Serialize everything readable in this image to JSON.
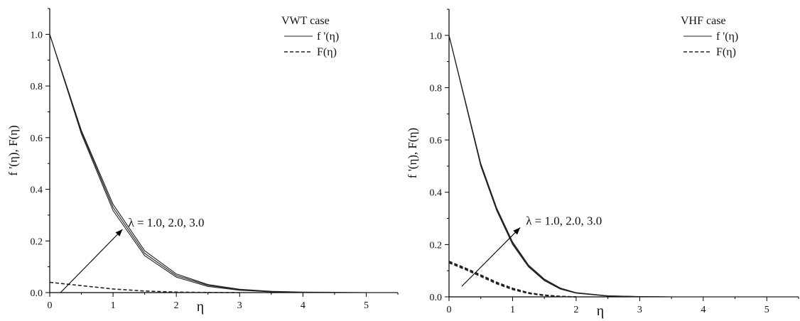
{
  "chart_data": [
    {
      "type": "line",
      "title": "",
      "xlabel": "η",
      "ylabel": "f '(η), F(η)",
      "xlim": [
        0,
        5.5
      ],
      "ylim": [
        0,
        1.1
      ],
      "x_ticks": [
        0,
        1,
        2,
        3,
        4,
        5
      ],
      "y_ticks": [
        0.0,
        0.2,
        0.4,
        0.6,
        0.8,
        1.0
      ],
      "grid": false,
      "legend": {
        "title": "VWT case",
        "placement": "top-right",
        "entries": [
          {
            "label": "f '(η)",
            "style": "solid"
          },
          {
            "label": "F(η)",
            "style": "dashed"
          }
        ]
      },
      "annotation": {
        "text": "λ = 1.0, 2.0, 3.0",
        "arrow_from": [
          0.17,
          0.0
        ],
        "arrow_to": [
          1.15,
          0.245
        ]
      },
      "series": [
        {
          "style": "solid",
          "x": [
            0,
            0.5,
            1.0,
            1.5,
            2.0,
            2.5,
            3.0,
            3.5,
            4.0,
            4.5,
            5.0,
            5.5
          ],
          "values": [
            1.0,
            0.615,
            0.318,
            0.143,
            0.06,
            0.024,
            0.009,
            0.003,
            0.001,
            0.0,
            0.0,
            0.0
          ]
        },
        {
          "style": "solid",
          "x": [
            0,
            0.5,
            1.0,
            1.5,
            2.0,
            2.5,
            3.0,
            3.5,
            4.0,
            4.5,
            5.0,
            5.5
          ],
          "values": [
            1.0,
            0.622,
            0.33,
            0.152,
            0.066,
            0.028,
            0.011,
            0.004,
            0.001,
            0.0,
            0.0,
            0.0
          ]
        },
        {
          "style": "solid",
          "x": [
            0,
            0.5,
            1.0,
            1.5,
            2.0,
            2.5,
            3.0,
            3.5,
            4.0,
            4.5,
            5.0,
            5.5
          ],
          "values": [
            1.0,
            0.628,
            0.342,
            0.162,
            0.072,
            0.031,
            0.013,
            0.005,
            0.002,
            0.001,
            0.0,
            0.0
          ]
        },
        {
          "style": "dashed",
          "x": [
            0,
            0.5,
            1.0,
            1.5,
            2.0,
            2.5,
            3.0
          ],
          "values": [
            0.04,
            0.027,
            0.014,
            0.006,
            0.002,
            0.0005,
            0.0
          ]
        }
      ]
    },
    {
      "type": "line",
      "title": "",
      "xlabel": "η",
      "ylabel": "f '(η), F(η)",
      "xlim": [
        0,
        5.5
      ],
      "ylim": [
        0,
        1.1
      ],
      "x_ticks": [
        0,
        1,
        2,
        3,
        4,
        5
      ],
      "y_ticks": [
        0.0,
        0.2,
        0.4,
        0.6,
        0.8,
        1.0
      ],
      "grid": false,
      "legend": {
        "title": "VHF case",
        "placement": "top-right",
        "entries": [
          {
            "label": "f '(η)",
            "style": "solid"
          },
          {
            "label": "F(η)",
            "style": "dashed"
          }
        ]
      },
      "annotation": {
        "text": "λ = 1.0, 2.0, 3.0",
        "arrow_from": [
          0.2,
          0.04
        ],
        "arrow_to": [
          1.12,
          0.265
        ]
      },
      "series": [
        {
          "style": "solid",
          "x": [
            0,
            0.25,
            0.5,
            0.75,
            1.0,
            1.25,
            1.5,
            1.75,
            2.0,
            2.5,
            3.0,
            3.5,
            4.0,
            5.0,
            5.5
          ],
          "values": [
            1.0,
            0.75,
            0.5,
            0.33,
            0.2,
            0.115,
            0.062,
            0.03,
            0.014,
            0.003,
            0.0005,
            0.0,
            0.0,
            0.0,
            0.0
          ]
        },
        {
          "style": "solid",
          "x": [
            0,
            0.25,
            0.5,
            0.75,
            1.0,
            1.25,
            1.5,
            1.75,
            2.0,
            2.5,
            3.0,
            3.5,
            4.0,
            5.0,
            5.5
          ],
          "values": [
            1.0,
            0.752,
            0.505,
            0.335,
            0.205,
            0.118,
            0.065,
            0.032,
            0.015,
            0.004,
            0.0007,
            0.0,
            0.0,
            0.0,
            0.0
          ]
        },
        {
          "style": "solid",
          "x": [
            0,
            0.25,
            0.5,
            0.75,
            1.0,
            1.25,
            1.5,
            1.75,
            2.0,
            2.5,
            3.0,
            3.5,
            4.0,
            5.0,
            5.5
          ],
          "values": [
            1.0,
            0.755,
            0.51,
            0.34,
            0.21,
            0.122,
            0.068,
            0.034,
            0.016,
            0.004,
            0.001,
            0.0,
            0.0,
            0.0,
            0.0
          ]
        },
        {
          "style": "dashed",
          "x": [
            0,
            0.25,
            0.5,
            0.75,
            1.0,
            1.25,
            1.5,
            1.75,
            2.0
          ],
          "values": [
            0.13,
            0.105,
            0.078,
            0.05,
            0.028,
            0.013,
            0.005,
            0.001,
            0.0
          ]
        },
        {
          "style": "dashed",
          "x": [
            0,
            0.25,
            0.5,
            0.75,
            1.0,
            1.25,
            1.5,
            1.75,
            2.0
          ],
          "values": [
            0.133,
            0.108,
            0.081,
            0.053,
            0.03,
            0.015,
            0.006,
            0.002,
            0.0
          ]
        },
        {
          "style": "dashed",
          "x": [
            0,
            0.25,
            0.5,
            0.75,
            1.0,
            1.25,
            1.5,
            1.75,
            2.0
          ],
          "values": [
            0.136,
            0.111,
            0.084,
            0.056,
            0.033,
            0.016,
            0.007,
            0.002,
            0.0
          ]
        }
      ]
    }
  ]
}
